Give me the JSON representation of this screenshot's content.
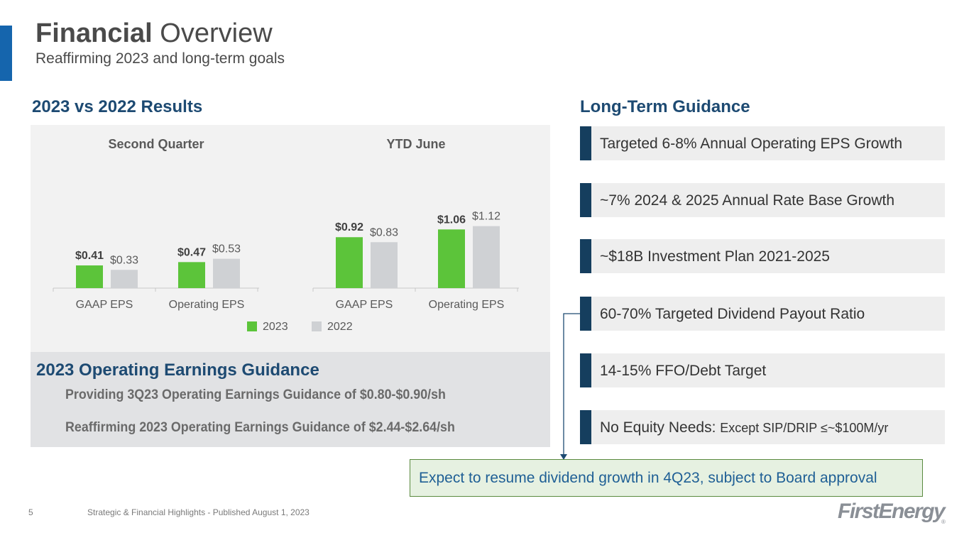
{
  "header": {
    "title_bold": "Financial",
    "title_rest": " Overview",
    "subtitle": "Reaffirming 2023 and long-term goals"
  },
  "results": {
    "heading": "2023 vs 2022 Results"
  },
  "chart_data": {
    "type": "bar",
    "legend": {
      "items": [
        "2023",
        "2022"
      ],
      "position": "bottom"
    },
    "colors": {
      "2023": "#5cc43a",
      "2022": "#cfd1d4"
    },
    "ylim": [
      0,
      1.2
    ],
    "panels": [
      {
        "title": "Second Quarter",
        "categories": [
          "GAAP EPS",
          "Operating EPS"
        ],
        "series": [
          {
            "name": "2023",
            "values": [
              0.41,
              0.47
            ],
            "labels": [
              "$0.41",
              "$0.47"
            ]
          },
          {
            "name": "2022",
            "values": [
              0.33,
              0.53
            ],
            "labels": [
              "$0.33",
              "$0.53"
            ]
          }
        ]
      },
      {
        "title": "YTD June",
        "categories": [
          "GAAP EPS",
          "Operating EPS"
        ],
        "series": [
          {
            "name": "2023",
            "values": [
              0.92,
              1.06
            ],
            "labels": [
              "$0.92",
              "$1.06"
            ]
          },
          {
            "name": "2022",
            "values": [
              0.83,
              1.12
            ],
            "labels": [
              "$0.83",
              "$1.12"
            ]
          }
        ]
      }
    ]
  },
  "guidance": {
    "title": "2023 Operating Earnings Guidance",
    "lines": [
      "Providing 3Q23 Operating Earnings Guidance of $0.80-$0.90/sh",
      "Reaffirming 2023 Operating Earnings Guidance of $2.44-$2.64/sh"
    ]
  },
  "long_term": {
    "heading": "Long-Term Guidance",
    "items": [
      {
        "text": "Targeted 6-8% Annual Operating EPS Growth",
        "small": ""
      },
      {
        "text": "~7% 2024 & 2025 Annual Rate Base Growth",
        "small": ""
      },
      {
        "text": "~$18B Investment Plan 2021-2025",
        "small": ""
      },
      {
        "text": "60-70% Targeted Dividend Payout Ratio",
        "small": ""
      },
      {
        "text": "14-15% FFO/Debt Target",
        "small": ""
      },
      {
        "text": "No Equity Needs: ",
        "small": "Except SIP/DRIP ≤~$100M/yr"
      }
    ]
  },
  "callout": {
    "text": "Expect to resume dividend growth in 4Q23, subject to Board approval"
  },
  "footer": {
    "page_number": "5",
    "text": "Strategic & Financial Highlights - Published August 1, 2023",
    "logo": "FirstEnergy",
    "logo_mark": "®"
  }
}
